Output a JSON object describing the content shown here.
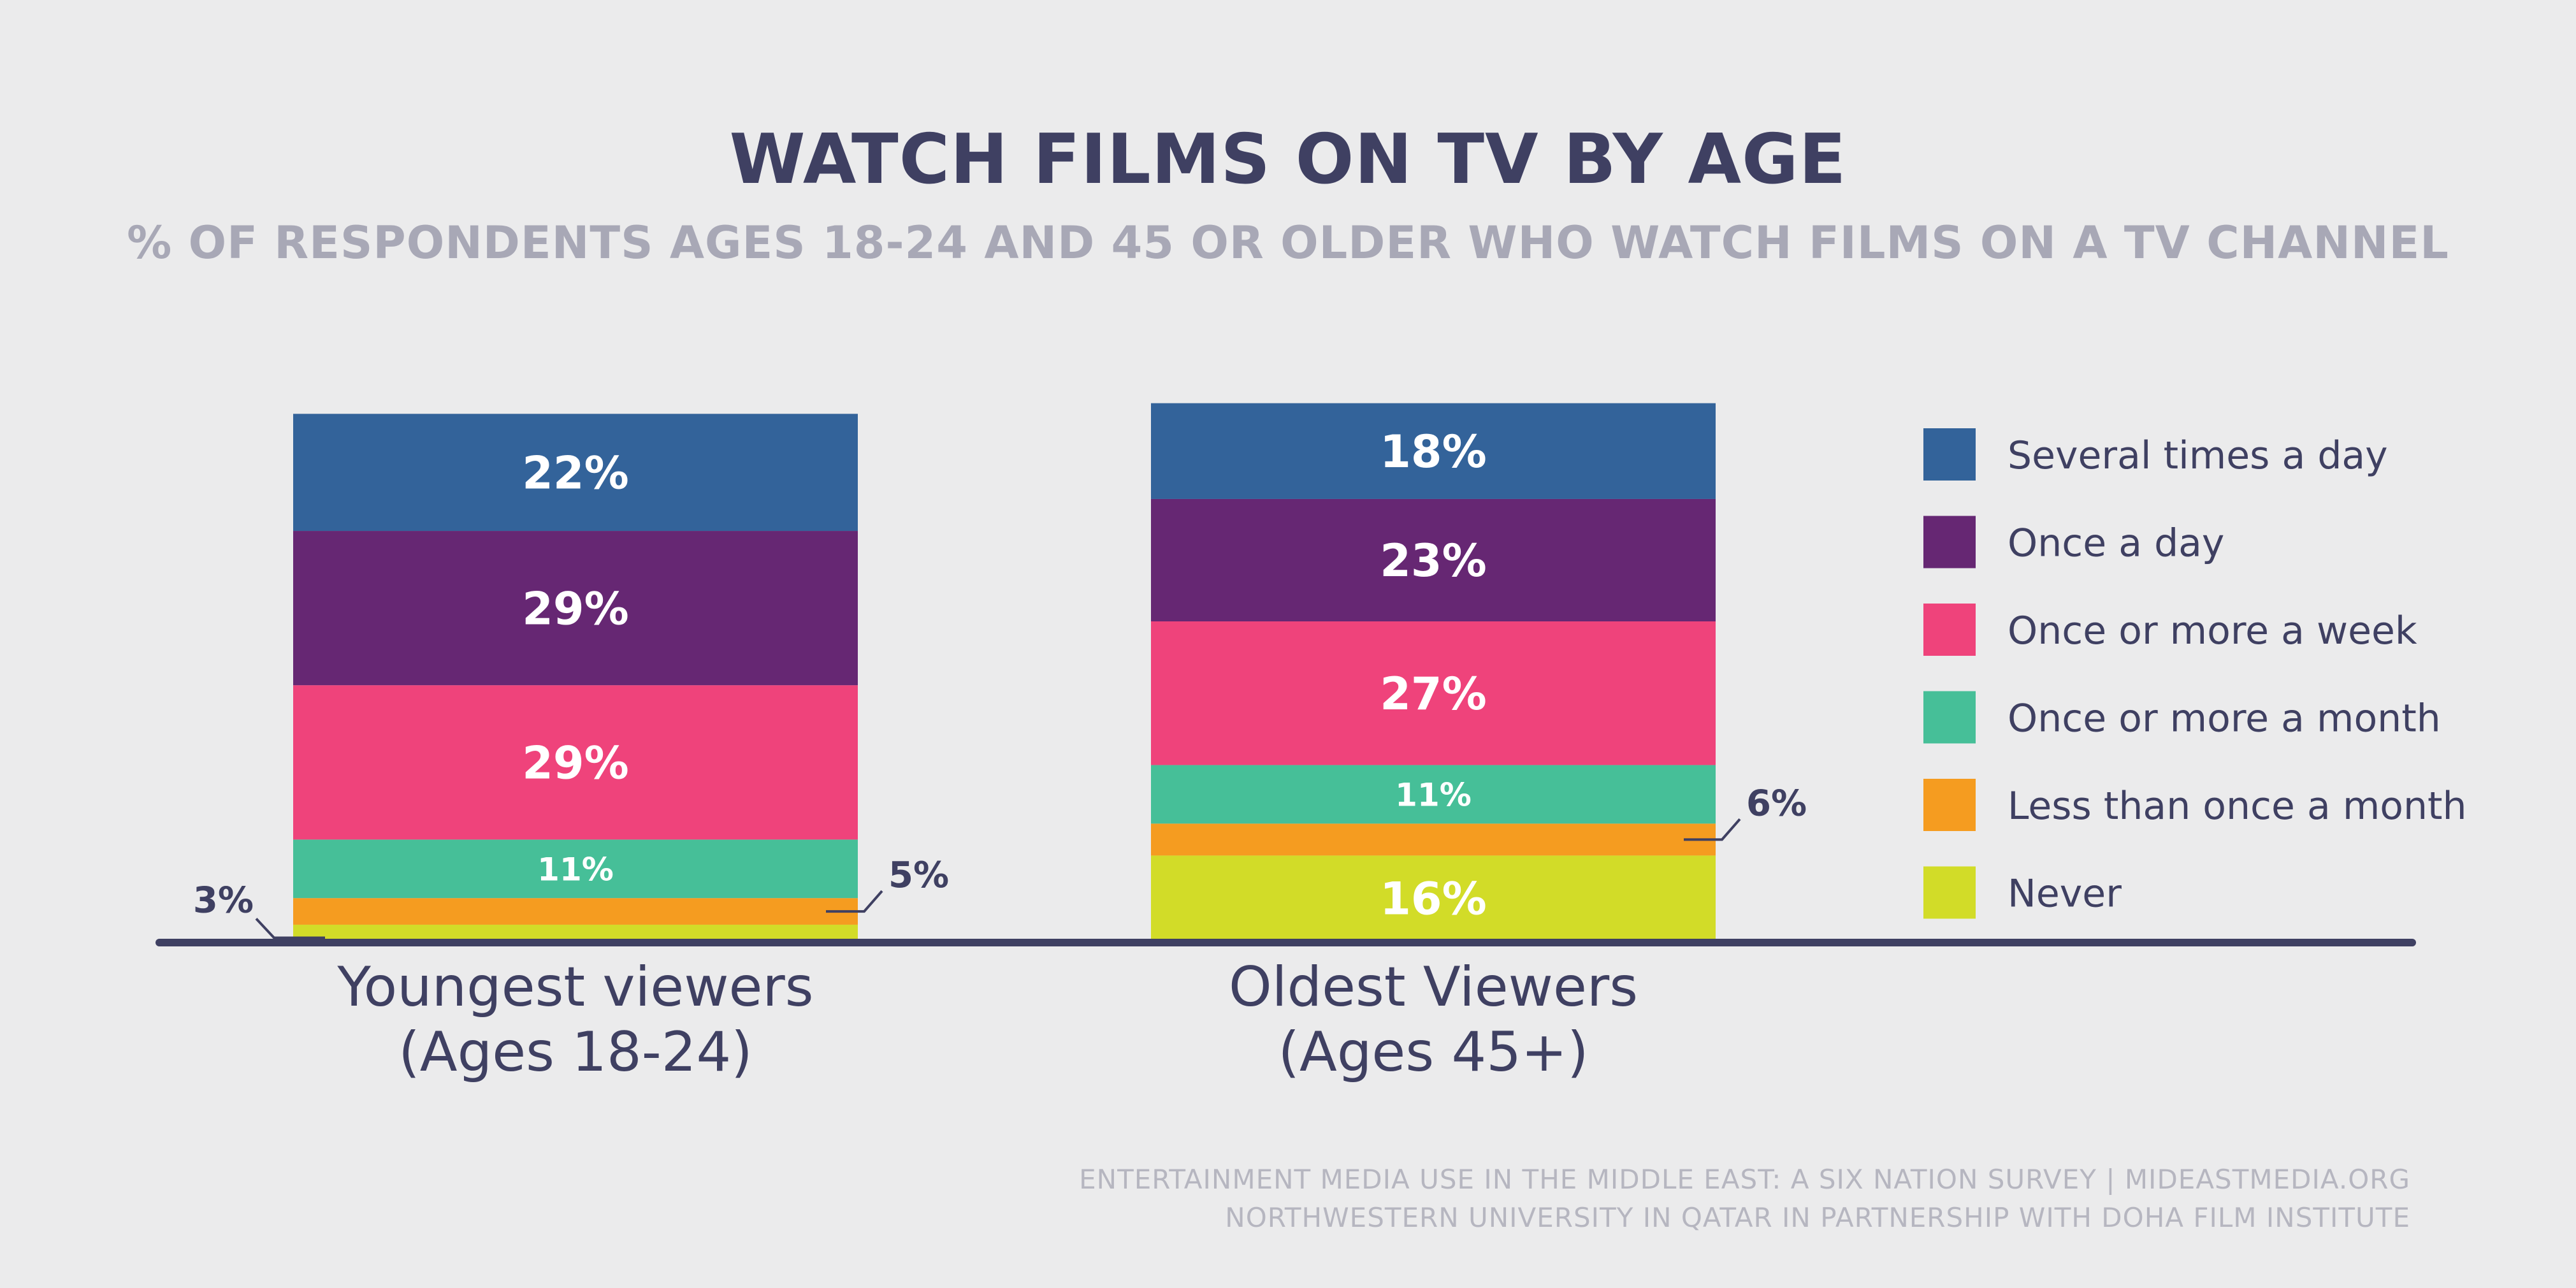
{
  "header": {
    "title": "WATCH FILMS ON TV BY AGE",
    "subtitle": "% OF RESPONDENTS AGES 18-24 AND 45 OR OLDER WHO WATCH FILMS ON A TV CHANNEL"
  },
  "footer": {
    "line1": "ENTERTAINMENT MEDIA USE IN THE MIDDLE EAST: A SIX NATION SURVEY | MIDEASTMEDIA.ORG",
    "line2": "NORTHWESTERN UNIVERSITY IN QATAR IN PARTNERSHIP WITH DOHA FILM INSTITUTE"
  },
  "chart_data": {
    "type": "bar",
    "stacked": true,
    "title": "WATCH FILMS ON TV BY AGE",
    "subtitle": "% OF RESPONDENTS AGES 18-24 AND 45 OR OLDER WHO WATCH FILMS ON A TV CHANNEL",
    "unit": "%",
    "categories": [
      {
        "line1": "Youngest viewers",
        "line2": "(Ages 18-24)"
      },
      {
        "line1": "Oldest Viewers",
        "line2": "(Ages 45+)"
      }
    ],
    "series": [
      {
        "name": "Never",
        "color": "#d2dc28",
        "values": [
          3,
          16
        ],
        "labels": [
          "3%",
          "16%"
        ],
        "label_outside": [
          true,
          false
        ]
      },
      {
        "name": "Less than once a month",
        "color": "#f59c20",
        "values": [
          5,
          6
        ],
        "labels": [
          "5%",
          "6%"
        ],
        "label_outside": [
          true,
          true
        ]
      },
      {
        "name": "Once or more a month",
        "color": "#46bf98",
        "values": [
          11,
          11
        ],
        "labels": [
          "11%",
          "11%"
        ],
        "label_outside": [
          false,
          false
        ]
      },
      {
        "name": "Once or more a week",
        "color": "#ef437b",
        "values": [
          29,
          27
        ],
        "labels": [
          "29%",
          "27%"
        ],
        "label_outside": [
          false,
          false
        ]
      },
      {
        "name": "Once a day",
        "color": "#662773",
        "values": [
          29,
          23
        ],
        "labels": [
          "29%",
          "23%"
        ],
        "label_outside": [
          false,
          false
        ]
      },
      {
        "name": "Several times a day",
        "color": "#33639a",
        "values": [
          22,
          18
        ],
        "labels": [
          "22%",
          "18%"
        ],
        "label_outside": [
          false,
          false
        ]
      }
    ],
    "legend": {
      "position": "right",
      "items": [
        "Several times a day",
        "Once a day",
        "Once or more a week",
        "Once or more a month",
        "Less than once a month",
        "Never"
      ]
    },
    "ylim": [
      0,
      100
    ],
    "grid": false,
    "axis_color": "#3f4062"
  }
}
